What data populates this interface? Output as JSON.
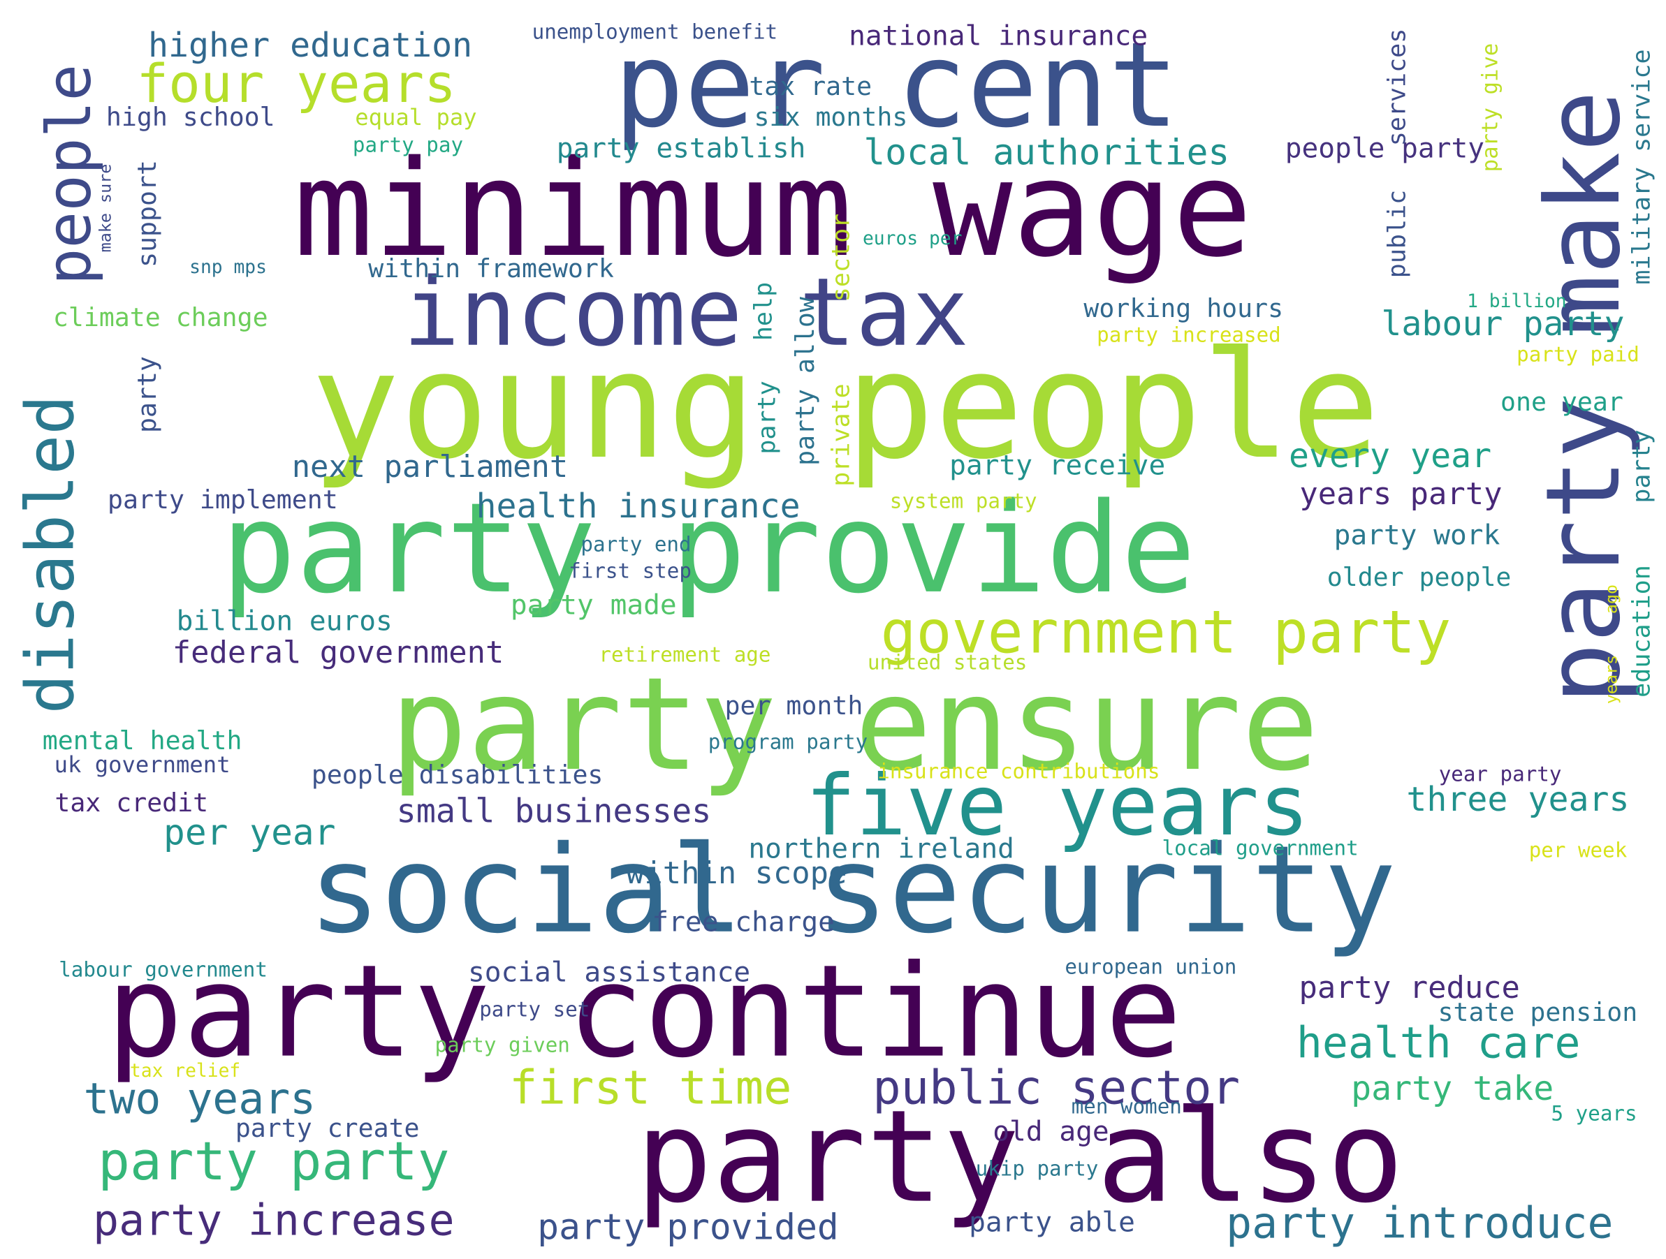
{
  "words": [
    {
      "text": "per cent",
      "color": "#3b528b"
    },
    {
      "text": "minimum wage",
      "color": "#440154"
    },
    {
      "text": "young people",
      "color": "#a6db36"
    },
    {
      "text": "income tax",
      "color": "#414487"
    },
    {
      "text": "party provide",
      "color": "#4ac16d"
    },
    {
      "text": "party ensure",
      "color": "#7ad151"
    },
    {
      "text": "social security",
      "color": "#31688e"
    },
    {
      "text": "party continue",
      "color": "#440154"
    },
    {
      "text": "party also",
      "color": "#440154"
    },
    {
      "text": "party make",
      "color": "#3e4989"
    },
    {
      "text": "five years",
      "color": "#21918c"
    },
    {
      "text": "government party",
      "color": "#bddf26"
    },
    {
      "text": "four years",
      "color": "#b5de2b"
    },
    {
      "text": "people",
      "color": "#3e4a89"
    },
    {
      "text": "disabled",
      "color": "#2a788e"
    },
    {
      "text": "party party",
      "color": "#35b779"
    },
    {
      "text": "party increase",
      "color": "#472c7a"
    },
    {
      "text": "two years",
      "color": "#2c728e"
    },
    {
      "text": "first time",
      "color": "#b8de29"
    },
    {
      "text": "public sector",
      "color": "#443983"
    },
    {
      "text": "health care",
      "color": "#1f9e89"
    },
    {
      "text": "party introduce",
      "color": "#2c728e"
    },
    {
      "text": "party provided",
      "color": "#3b528b"
    },
    {
      "text": "higher education",
      "color": "#31688e"
    },
    {
      "text": "unemployment benefit",
      "color": "#3b528b"
    },
    {
      "text": "national insurance",
      "color": "#482878"
    },
    {
      "text": "tax rate",
      "color": "#31688e"
    },
    {
      "text": "six months",
      "color": "#2a788e"
    },
    {
      "text": "high school",
      "color": "#3e4a89"
    },
    {
      "text": "equal pay",
      "color": "#b5de2b"
    },
    {
      "text": "party pay",
      "color": "#22a884"
    },
    {
      "text": "party establish",
      "color": "#23898e"
    },
    {
      "text": "local authorities",
      "color": "#21918c"
    },
    {
      "text": "people party",
      "color": "#46327e"
    },
    {
      "text": "services",
      "color": "#3e4a89"
    },
    {
      "text": "party give",
      "color": "#bddf26"
    },
    {
      "text": "military service",
      "color": "#2a788e"
    },
    {
      "text": "make sure",
      "color": "#3e4a89"
    },
    {
      "text": "support",
      "color": "#3b528b"
    },
    {
      "text": "snp mps",
      "color": "#2c728e"
    },
    {
      "text": "within framework",
      "color": "#31688e"
    },
    {
      "text": "euros per",
      "color": "#1fa088"
    },
    {
      "text": "sector",
      "color": "#bddf26"
    },
    {
      "text": "public",
      "color": "#3b528b"
    },
    {
      "text": "climate change",
      "color": "#6ccd5a"
    },
    {
      "text": "help",
      "color": "#21918c"
    },
    {
      "text": "party allow",
      "color": "#2c728e"
    },
    {
      "text": "working hours",
      "color": "#31688e"
    },
    {
      "text": "labour party",
      "color": "#21918c"
    },
    {
      "text": "1 billion",
      "color": "#22a884"
    },
    {
      "text": "party increased",
      "color": "#d8e219"
    },
    {
      "text": "party paid",
      "color": "#d8e219"
    },
    {
      "text": "one year",
      "color": "#1fa088"
    },
    {
      "text": "party",
      "color": "#3b528b"
    },
    {
      "text": "private",
      "color": "#bddf26"
    },
    {
      "text": "party",
      "color": "#21918c"
    },
    {
      "text": "next parliament",
      "color": "#31688e"
    },
    {
      "text": "party receive",
      "color": "#21918c"
    },
    {
      "text": "every year",
      "color": "#1fa088"
    },
    {
      "text": "party",
      "color": "#26828e"
    },
    {
      "text": "party implement",
      "color": "#3e4a89"
    },
    {
      "text": "health insurance",
      "color": "#2c728e"
    },
    {
      "text": "system party",
      "color": "#bddf26"
    },
    {
      "text": "years party",
      "color": "#482878"
    },
    {
      "text": "party end",
      "color": "#2c728e"
    },
    {
      "text": "party work",
      "color": "#2a788e"
    },
    {
      "text": "first step",
      "color": "#3b528b"
    },
    {
      "text": "older people",
      "color": "#23898e"
    },
    {
      "text": "party made",
      "color": "#52c569"
    },
    {
      "text": "billion euros",
      "color": "#23898e"
    },
    {
      "text": "ago",
      "color": "#d8e219"
    },
    {
      "text": "education",
      "color": "#1f9e89"
    },
    {
      "text": "federal government",
      "color": "#472c7a"
    },
    {
      "text": "retirement age",
      "color": "#bddf26"
    },
    {
      "text": "united states",
      "color": "#b5de2b"
    },
    {
      "text": "years",
      "color": "#d8e219"
    },
    {
      "text": "per month",
      "color": "#3b528b"
    },
    {
      "text": "mental health",
      "color": "#22a884"
    },
    {
      "text": "program party",
      "color": "#2a788e"
    },
    {
      "text": "uk government",
      "color": "#3e4a89"
    },
    {
      "text": "people disabilities",
      "color": "#3b528b"
    },
    {
      "text": "insurance contributions",
      "color": "#d8e219"
    },
    {
      "text": "year party",
      "color": "#482878"
    },
    {
      "text": "tax credit",
      "color": "#482878"
    },
    {
      "text": "three years",
      "color": "#21918c"
    },
    {
      "text": "per year",
      "color": "#21918c"
    },
    {
      "text": "small businesses",
      "color": "#443983"
    },
    {
      "text": "northern ireland",
      "color": "#2a788e"
    },
    {
      "text": "local government",
      "color": "#1f9e89"
    },
    {
      "text": "per week",
      "color": "#d8e219"
    },
    {
      "text": "within scope",
      "color": "#31688e"
    },
    {
      "text": "free charge",
      "color": "#3b528b"
    },
    {
      "text": "social assistance",
      "color": "#3e4a89"
    },
    {
      "text": "labour government",
      "color": "#23898e"
    },
    {
      "text": "european union",
      "color": "#31688e"
    },
    {
      "text": "party reduce",
      "color": "#472c7a"
    },
    {
      "text": "party set",
      "color": "#3e4a89"
    },
    {
      "text": "state pension",
      "color": "#2c728e"
    },
    {
      "text": "party given",
      "color": "#6ccd5a"
    },
    {
      "text": "tax relief",
      "color": "#d8e219"
    },
    {
      "text": "party take",
      "color": "#35b779"
    },
    {
      "text": "men women",
      "color": "#31688e"
    },
    {
      "text": "party create",
      "color": "#3b528b"
    },
    {
      "text": "old age",
      "color": "#482878"
    },
    {
      "text": "5 years",
      "color": "#1fa088"
    },
    {
      "text": "ukip party",
      "color": "#2a788e"
    },
    {
      "text": "party able",
      "color": "#3b528b"
    }
  ]
}
